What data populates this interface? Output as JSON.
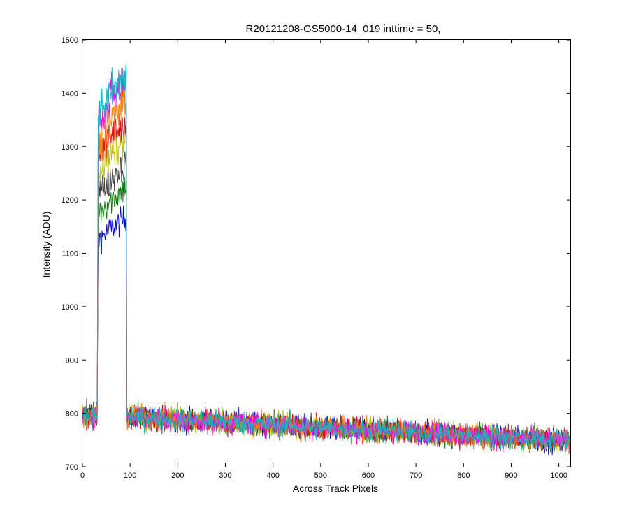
{
  "chart_data": {
    "type": "line",
    "title": "R20121208-GS5000-14_019 inttime = 50,",
    "xlabel": "Across Track Pixels",
    "ylabel": "Intensity (ADU)",
    "xlim": [
      0,
      1024
    ],
    "ylim": [
      700,
      1500
    ],
    "xticks": [
      "0",
      "100",
      "200",
      "300",
      "400",
      "500",
      "600",
      "700",
      "800",
      "900",
      "1000"
    ],
    "yticks": [
      "700",
      "800",
      "900",
      "1000",
      "1100",
      "1200",
      "1300",
      "1400",
      "1500"
    ],
    "grid": false,
    "legend": "none",
    "series_description": {
      "pixel_range": [
        0,
        1024
      ],
      "signal_region": [
        32,
        92
      ],
      "baseline_start": 798,
      "baseline_end": 748,
      "noise_amplitude": 16
    },
    "series": [
      {
        "color": "#0000ff",
        "peak_level": 1150
      },
      {
        "color": "#008000",
        "peak_level": 1205
      },
      {
        "color": "#404040",
        "peak_level": 1245
      },
      {
        "color": "#c0c000",
        "peak_level": 1290
      },
      {
        "color": "#ff0000",
        "peak_level": 1325
      },
      {
        "color": "#ff8000",
        "peak_level": 1355
      },
      {
        "color": "#ff00ff",
        "peak_level": 1395
      },
      {
        "color": "#00bfbf",
        "peak_level": 1405
      }
    ]
  }
}
